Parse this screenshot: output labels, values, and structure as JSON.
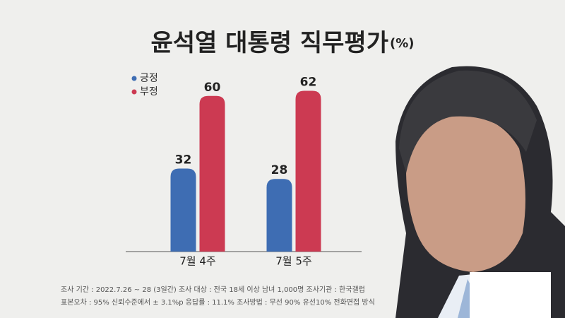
{
  "chart_data": {
    "type": "bar",
    "title": "윤석열 대통령 직무평가",
    "unit": "(%)",
    "categories": [
      "7월 4주",
      "7월 5주"
    ],
    "series": [
      {
        "name": "긍정",
        "color": "#3e6db3",
        "values": [
          32,
          28
        ]
      },
      {
        "name": "부정",
        "color": "#cc3a52",
        "values": [
          60,
          62
        ]
      }
    ],
    "notes": [
      "조사 기간 : 2022.7.26 ~ 28 (3일간)   조사 대상 : 전국 18세 이상 남녀 1,000명   조사기관 : 한국갤럽",
      "표본오차 : 95% 신뢰수준에서 ± 3.1%p   응답률 : 11.1%   조사방법 : 무선 90% 유선10% 전화면접 방식"
    ]
  }
}
